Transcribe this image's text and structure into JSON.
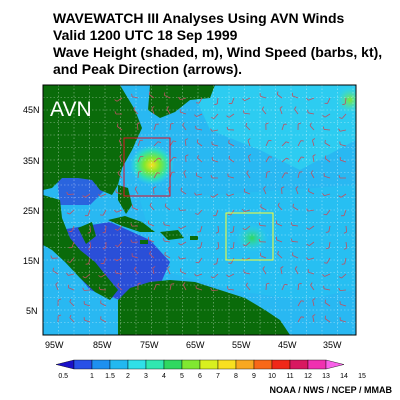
{
  "title": {
    "line1": "WAVEWATCH III Analyses Using AVN Winds",
    "line2": "Valid 1200 UTC  18 Sep 1999",
    "line3": "Wave Height (shaded, m), Wind Speed (barbs, kt),",
    "line4": "and Peak Direction (arrows)."
  },
  "map": {
    "model_label": "AVN",
    "lon_labels": [
      "95W",
      "85W",
      "75W",
      "65W",
      "55W",
      "45W",
      "35W"
    ],
    "lat_labels": [
      "45N",
      "35N",
      "25N",
      "15N",
      "5N"
    ],
    "colors": {
      "land": "#0a6b0a",
      "ocean_base": "#29b8f2",
      "deep_blue": "#2a4fd8",
      "box_red": "#e0102a",
      "box_yellow": "#ffff30",
      "barb": "#c05060"
    }
  },
  "colorbar": {
    "labels": [
      "0.5",
      "1",
      "1.5",
      "2",
      "3",
      "4",
      "5",
      "6",
      "7",
      "8",
      "9",
      "10",
      "11",
      "12",
      "13",
      "14",
      "15"
    ],
    "colors": [
      "#1a10c8",
      "#2850e8",
      "#1e90f0",
      "#22b8f0",
      "#30e0e8",
      "#30e8b0",
      "#30d860",
      "#80e830",
      "#d8f020",
      "#f8e020",
      "#f8a820",
      "#f86818",
      "#f02818",
      "#d81860",
      "#f030b0",
      "#f860e8"
    ]
  },
  "credit": "NOAA / NWS / NCEP / MMAB"
}
